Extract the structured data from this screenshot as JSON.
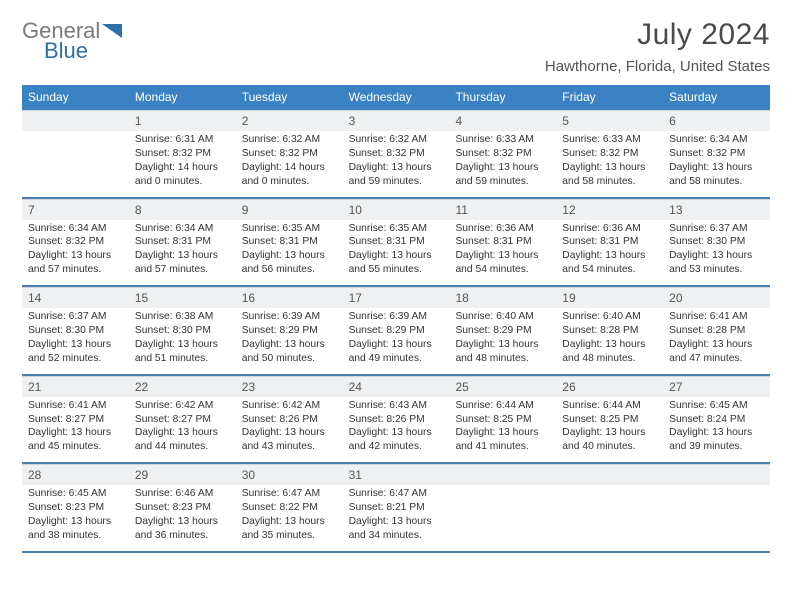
{
  "logo": {
    "text_general": "General",
    "text_blue": "Blue",
    "gray_color": "#7a7a7a",
    "blue_color": "#2f6fa8"
  },
  "header": {
    "month_title": "July 2024",
    "location": "Hawthorne, Florida, United States"
  },
  "colors": {
    "header_bg": "#3b82c4",
    "header_text": "#ffffff",
    "daynum_bg": "#eef0f1",
    "week_divider": "#4a7fb0",
    "text": "#333333"
  },
  "typography": {
    "title_fontsize": 30,
    "location_fontsize": 15,
    "dayheader_fontsize": 12,
    "cell_fontsize": 10.3
  },
  "day_headers": [
    "Sunday",
    "Monday",
    "Tuesday",
    "Wednesday",
    "Thursday",
    "Friday",
    "Saturday"
  ],
  "weeks": [
    {
      "nums": [
        "",
        "1",
        "2",
        "3",
        "4",
        "5",
        "6"
      ],
      "info": [
        {
          "sunrise": "",
          "sunset": "",
          "daylight": ""
        },
        {
          "sunrise": "Sunrise: 6:31 AM",
          "sunset": "Sunset: 8:32 PM",
          "daylight": "Daylight: 14 hours and 0 minutes."
        },
        {
          "sunrise": "Sunrise: 6:32 AM",
          "sunset": "Sunset: 8:32 PM",
          "daylight": "Daylight: 14 hours and 0 minutes."
        },
        {
          "sunrise": "Sunrise: 6:32 AM",
          "sunset": "Sunset: 8:32 PM",
          "daylight": "Daylight: 13 hours and 59 minutes."
        },
        {
          "sunrise": "Sunrise: 6:33 AM",
          "sunset": "Sunset: 8:32 PM",
          "daylight": "Daylight: 13 hours and 59 minutes."
        },
        {
          "sunrise": "Sunrise: 6:33 AM",
          "sunset": "Sunset: 8:32 PM",
          "daylight": "Daylight: 13 hours and 58 minutes."
        },
        {
          "sunrise": "Sunrise: 6:34 AM",
          "sunset": "Sunset: 8:32 PM",
          "daylight": "Daylight: 13 hours and 58 minutes."
        }
      ]
    },
    {
      "nums": [
        "7",
        "8",
        "9",
        "10",
        "11",
        "12",
        "13"
      ],
      "info": [
        {
          "sunrise": "Sunrise: 6:34 AM",
          "sunset": "Sunset: 8:32 PM",
          "daylight": "Daylight: 13 hours and 57 minutes."
        },
        {
          "sunrise": "Sunrise: 6:34 AM",
          "sunset": "Sunset: 8:31 PM",
          "daylight": "Daylight: 13 hours and 57 minutes."
        },
        {
          "sunrise": "Sunrise: 6:35 AM",
          "sunset": "Sunset: 8:31 PM",
          "daylight": "Daylight: 13 hours and 56 minutes."
        },
        {
          "sunrise": "Sunrise: 6:35 AM",
          "sunset": "Sunset: 8:31 PM",
          "daylight": "Daylight: 13 hours and 55 minutes."
        },
        {
          "sunrise": "Sunrise: 6:36 AM",
          "sunset": "Sunset: 8:31 PM",
          "daylight": "Daylight: 13 hours and 54 minutes."
        },
        {
          "sunrise": "Sunrise: 6:36 AM",
          "sunset": "Sunset: 8:31 PM",
          "daylight": "Daylight: 13 hours and 54 minutes."
        },
        {
          "sunrise": "Sunrise: 6:37 AM",
          "sunset": "Sunset: 8:30 PM",
          "daylight": "Daylight: 13 hours and 53 minutes."
        }
      ]
    },
    {
      "nums": [
        "14",
        "15",
        "16",
        "17",
        "18",
        "19",
        "20"
      ],
      "info": [
        {
          "sunrise": "Sunrise: 6:37 AM",
          "sunset": "Sunset: 8:30 PM",
          "daylight": "Daylight: 13 hours and 52 minutes."
        },
        {
          "sunrise": "Sunrise: 6:38 AM",
          "sunset": "Sunset: 8:30 PM",
          "daylight": "Daylight: 13 hours and 51 minutes."
        },
        {
          "sunrise": "Sunrise: 6:39 AM",
          "sunset": "Sunset: 8:29 PM",
          "daylight": "Daylight: 13 hours and 50 minutes."
        },
        {
          "sunrise": "Sunrise: 6:39 AM",
          "sunset": "Sunset: 8:29 PM",
          "daylight": "Daylight: 13 hours and 49 minutes."
        },
        {
          "sunrise": "Sunrise: 6:40 AM",
          "sunset": "Sunset: 8:29 PM",
          "daylight": "Daylight: 13 hours and 48 minutes."
        },
        {
          "sunrise": "Sunrise: 6:40 AM",
          "sunset": "Sunset: 8:28 PM",
          "daylight": "Daylight: 13 hours and 48 minutes."
        },
        {
          "sunrise": "Sunrise: 6:41 AM",
          "sunset": "Sunset: 8:28 PM",
          "daylight": "Daylight: 13 hours and 47 minutes."
        }
      ]
    },
    {
      "nums": [
        "21",
        "22",
        "23",
        "24",
        "25",
        "26",
        "27"
      ],
      "info": [
        {
          "sunrise": "Sunrise: 6:41 AM",
          "sunset": "Sunset: 8:27 PM",
          "daylight": "Daylight: 13 hours and 45 minutes."
        },
        {
          "sunrise": "Sunrise: 6:42 AM",
          "sunset": "Sunset: 8:27 PM",
          "daylight": "Daylight: 13 hours and 44 minutes."
        },
        {
          "sunrise": "Sunrise: 6:42 AM",
          "sunset": "Sunset: 8:26 PM",
          "daylight": "Daylight: 13 hours and 43 minutes."
        },
        {
          "sunrise": "Sunrise: 6:43 AM",
          "sunset": "Sunset: 8:26 PM",
          "daylight": "Daylight: 13 hours and 42 minutes."
        },
        {
          "sunrise": "Sunrise: 6:44 AM",
          "sunset": "Sunset: 8:25 PM",
          "daylight": "Daylight: 13 hours and 41 minutes."
        },
        {
          "sunrise": "Sunrise: 6:44 AM",
          "sunset": "Sunset: 8:25 PM",
          "daylight": "Daylight: 13 hours and 40 minutes."
        },
        {
          "sunrise": "Sunrise: 6:45 AM",
          "sunset": "Sunset: 8:24 PM",
          "daylight": "Daylight: 13 hours and 39 minutes."
        }
      ]
    },
    {
      "nums": [
        "28",
        "29",
        "30",
        "31",
        "",
        "",
        ""
      ],
      "info": [
        {
          "sunrise": "Sunrise: 6:45 AM",
          "sunset": "Sunset: 8:23 PM",
          "daylight": "Daylight: 13 hours and 38 minutes."
        },
        {
          "sunrise": "Sunrise: 6:46 AM",
          "sunset": "Sunset: 8:23 PM",
          "daylight": "Daylight: 13 hours and 36 minutes."
        },
        {
          "sunrise": "Sunrise: 6:47 AM",
          "sunset": "Sunset: 8:22 PM",
          "daylight": "Daylight: 13 hours and 35 minutes."
        },
        {
          "sunrise": "Sunrise: 6:47 AM",
          "sunset": "Sunset: 8:21 PM",
          "daylight": "Daylight: 13 hours and 34 minutes."
        },
        {
          "sunrise": "",
          "sunset": "",
          "daylight": ""
        },
        {
          "sunrise": "",
          "sunset": "",
          "daylight": ""
        },
        {
          "sunrise": "",
          "sunset": "",
          "daylight": ""
        }
      ]
    }
  ]
}
